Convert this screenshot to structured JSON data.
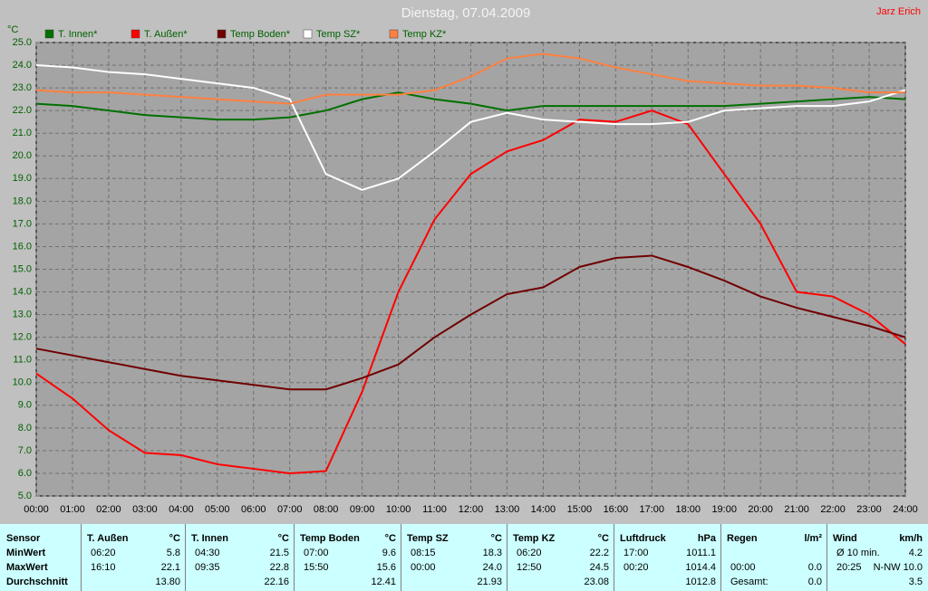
{
  "chart_data": {
    "type": "line",
    "title": "Dienstag, 07.04.2009",
    "author": "Jarz Erich",
    "y_unit": "°C",
    "x": [
      0,
      1,
      2,
      3,
      4,
      5,
      6,
      7,
      8,
      9,
      10,
      11,
      12,
      13,
      14,
      15,
      16,
      17,
      18,
      19,
      20,
      21,
      22,
      23,
      24
    ],
    "xlim": [
      0,
      24
    ],
    "xticks": [
      {
        "value": 0,
        "label": "00:00"
      },
      {
        "value": 1,
        "label": "01:00"
      },
      {
        "value": 2,
        "label": "02:00"
      },
      {
        "value": 3,
        "label": "03:00"
      },
      {
        "value": 4,
        "label": "04:00"
      },
      {
        "value": 5,
        "label": "05:00"
      },
      {
        "value": 6,
        "label": "06:00"
      },
      {
        "value": 7,
        "label": "07:00"
      },
      {
        "value": 8,
        "label": "08:00"
      },
      {
        "value": 9,
        "label": "09:00"
      },
      {
        "value": 10,
        "label": "10:00"
      },
      {
        "value": 11,
        "label": "11:00"
      },
      {
        "value": 12,
        "label": "12:00"
      },
      {
        "value": 13,
        "label": "13:00"
      },
      {
        "value": 14,
        "label": "14:00"
      },
      {
        "value": 15,
        "label": "15:00"
      },
      {
        "value": 16,
        "label": "16:00"
      },
      {
        "value": 17,
        "label": "17:00"
      },
      {
        "value": 18,
        "label": "18:00"
      },
      {
        "value": 19,
        "label": "19:00"
      },
      {
        "value": 20,
        "label": "20:00"
      },
      {
        "value": 21,
        "label": "21:00"
      },
      {
        "value": 22,
        "label": "22:00"
      },
      {
        "value": 23,
        "label": "23:00"
      },
      {
        "value": 24,
        "label": "24:00"
      }
    ],
    "ylim": [
      5,
      25
    ],
    "yticks": [
      {
        "value": 5,
        "label": "5.0"
      },
      {
        "value": 6,
        "label": "6.0"
      },
      {
        "value": 7,
        "label": "7.0"
      },
      {
        "value": 8,
        "label": "8.0"
      },
      {
        "value": 9,
        "label": "9.0"
      },
      {
        "value": 10,
        "label": "10.0"
      },
      {
        "value": 11,
        "label": "11.0"
      },
      {
        "value": 12,
        "label": "12.0"
      },
      {
        "value": 13,
        "label": "13.0"
      },
      {
        "value": 14,
        "label": "14.0"
      },
      {
        "value": 15,
        "label": "15.0"
      },
      {
        "value": 16,
        "label": "16.0"
      },
      {
        "value": 17,
        "label": "17.0"
      },
      {
        "value": 18,
        "label": "18.0"
      },
      {
        "value": 19,
        "label": "19.0"
      },
      {
        "value": 20,
        "label": "20.0"
      },
      {
        "value": 21,
        "label": "21.0"
      },
      {
        "value": 22,
        "label": "22.0"
      },
      {
        "value": 23,
        "label": "23.0"
      },
      {
        "value": 24,
        "label": "24.0"
      },
      {
        "value": 25,
        "label": "25.0"
      }
    ],
    "grid": true,
    "series": [
      {
        "name": "T. Innen*",
        "color": "#007000",
        "values": [
          22.3,
          22.2,
          22.0,
          21.8,
          21.7,
          21.6,
          21.6,
          21.7,
          22.0,
          22.5,
          22.8,
          22.5,
          22.3,
          22.0,
          22.2,
          22.2,
          22.2,
          22.2,
          22.2,
          22.2,
          22.3,
          22.4,
          22.5,
          22.6,
          22.5
        ]
      },
      {
        "name": "T. Außen*",
        "color": "#ff0000",
        "values": [
          10.4,
          9.3,
          7.9,
          6.9,
          6.8,
          6.4,
          6.2,
          6.0,
          6.1,
          9.6,
          14.0,
          17.2,
          19.2,
          20.2,
          20.7,
          21.6,
          21.5,
          22.0,
          21.4,
          19.2,
          17.0,
          14.0,
          13.8,
          13.0,
          11.7
        ]
      },
      {
        "name": "Temp Boden*",
        "color": "#700000",
        "values": [
          11.5,
          11.2,
          10.9,
          10.6,
          10.3,
          10.1,
          9.9,
          9.7,
          9.7,
          10.2,
          10.8,
          12.0,
          13.0,
          13.9,
          14.2,
          15.1,
          15.5,
          15.6,
          15.1,
          14.5,
          13.8,
          13.3,
          12.9,
          12.5,
          12.0
        ]
      },
      {
        "name": "Temp SZ*",
        "color": "#ffffff",
        "values": [
          24.0,
          23.9,
          23.7,
          23.6,
          23.4,
          23.2,
          23.0,
          22.5,
          19.2,
          18.5,
          19.0,
          20.2,
          21.5,
          21.9,
          21.6,
          21.5,
          21.4,
          21.4,
          21.5,
          22.0,
          22.1,
          22.2,
          22.2,
          22.4,
          22.9
        ]
      },
      {
        "name": "Temp KZ*",
        "color": "#ff8040",
        "values": [
          22.9,
          22.8,
          22.8,
          22.7,
          22.6,
          22.5,
          22.4,
          22.3,
          22.7,
          22.7,
          22.7,
          22.9,
          23.5,
          24.3,
          24.5,
          24.3,
          23.9,
          23.6,
          23.3,
          23.2,
          23.1,
          23.1,
          23.0,
          22.8,
          22.8
        ]
      }
    ]
  },
  "stats_table": {
    "row_labels": [
      "Sensor",
      "MinWert",
      "MaxWert",
      "Durchschnitt"
    ],
    "columns": [
      {
        "name": "T. Außen",
        "unit": "°C",
        "cells": [
          [
            "06:20",
            "5.8"
          ],
          [
            "16:10",
            "22.1"
          ],
          [
            null,
            "13.80"
          ]
        ]
      },
      {
        "name": "T. Innen",
        "unit": "°C",
        "cells": [
          [
            "04:30",
            "21.5"
          ],
          [
            "09:35",
            "22.8"
          ],
          [
            null,
            "22.16"
          ]
        ]
      },
      {
        "name": "Temp Boden",
        "unit": "°C",
        "cells": [
          [
            "07:00",
            "9.6"
          ],
          [
            "15:50",
            "15.6"
          ],
          [
            null,
            "12.41"
          ]
        ]
      },
      {
        "name": "Temp SZ",
        "unit": "°C",
        "cells": [
          [
            "08:15",
            "18.3"
          ],
          [
            "00:00",
            "24.0"
          ],
          [
            null,
            "21.93"
          ]
        ]
      },
      {
        "name": "Temp KZ",
        "unit": "°C",
        "cells": [
          [
            "06:20",
            "22.2"
          ],
          [
            "12:50",
            "24.5"
          ],
          [
            null,
            "23.08"
          ]
        ]
      },
      {
        "name": "Luftdruck",
        "unit": "hPa",
        "cells": [
          [
            "17:00",
            "1011.1"
          ],
          [
            "00:20",
            "1014.4"
          ],
          [
            null,
            "1012.8"
          ]
        ]
      },
      {
        "name": "Regen",
        "unit": "l/m²",
        "cells": [
          [
            null,
            null
          ],
          [
            "00:00",
            "0.0"
          ],
          [
            "Gesamt:",
            "0.0"
          ]
        ]
      },
      {
        "name": "Wind",
        "unit": "km/h",
        "cells": [
          [
            "Ø 10 min.",
            "4.2"
          ],
          [
            "20:25",
            "N-NW 10.0"
          ],
          [
            null,
            "3.5"
          ]
        ]
      }
    ]
  }
}
